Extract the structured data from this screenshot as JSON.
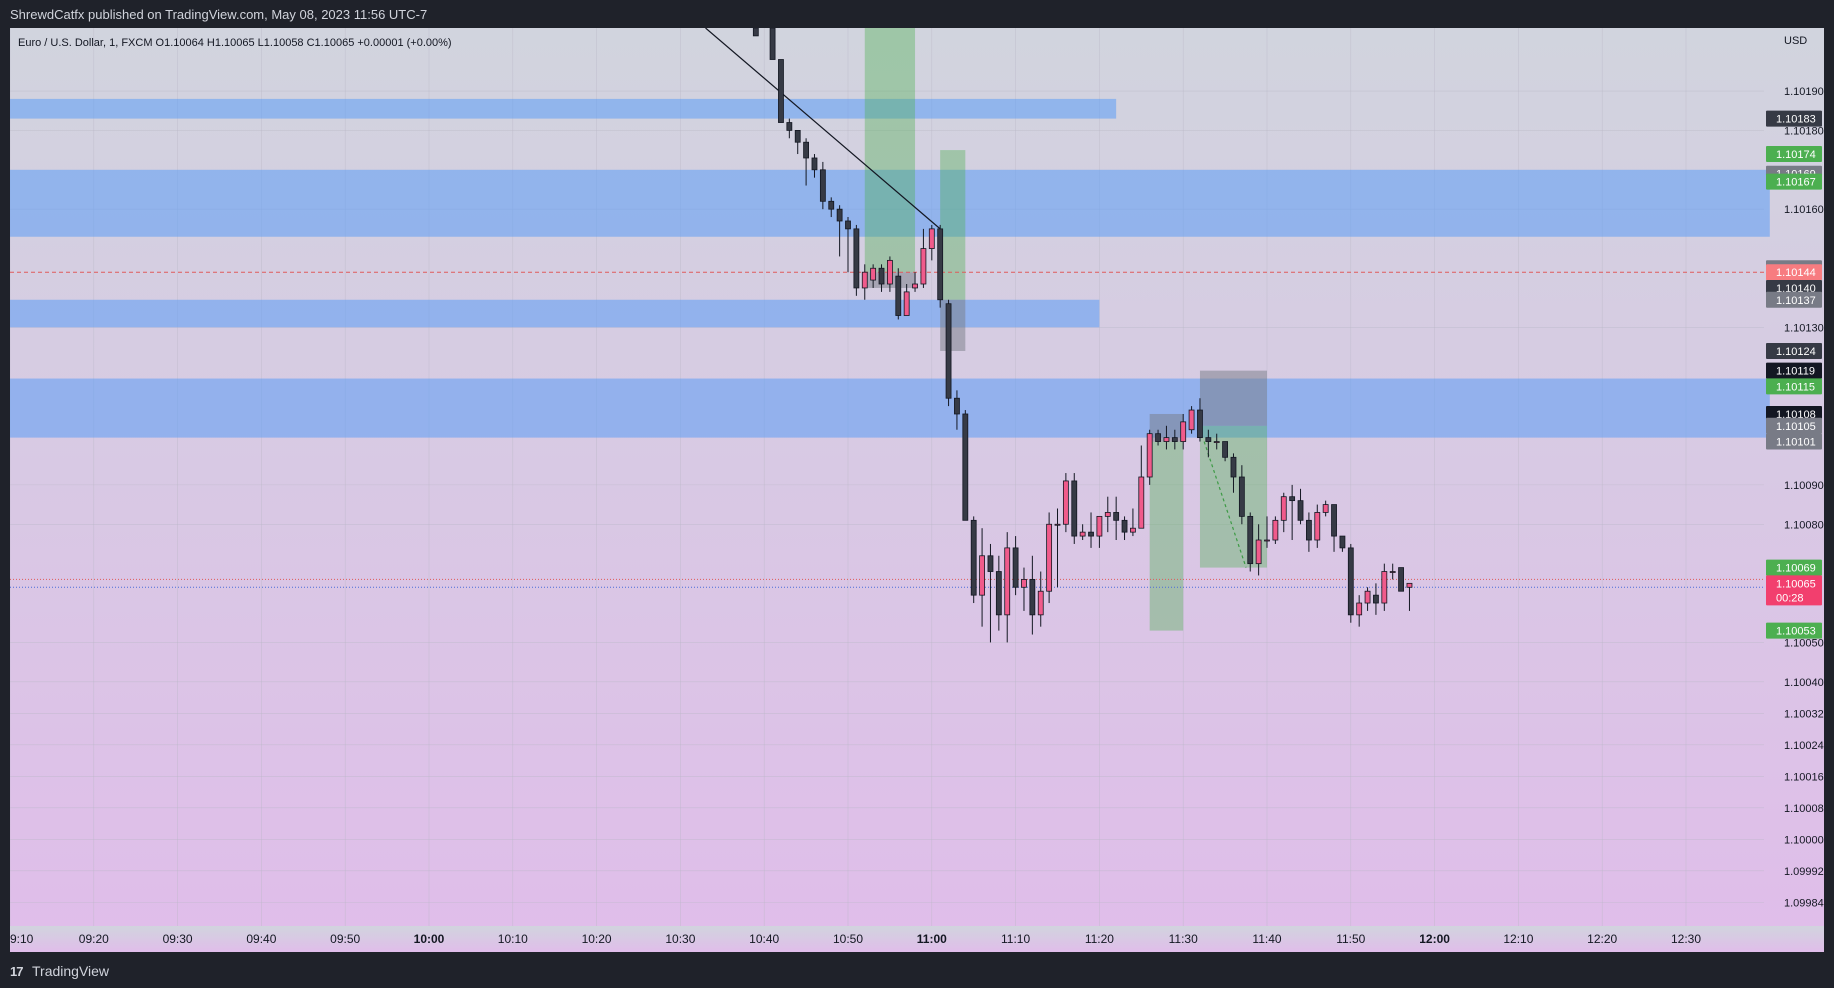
{
  "header": {
    "publish_line": "ShrewdCatfx published on TradingView.com, May 08, 2023 11:56 UTC-7"
  },
  "footer": {
    "logo_glyph": "17",
    "brand": "TradingView"
  },
  "chart_data": {
    "type": "candlestick",
    "symbol_line": "Euro / U.S. Dollar, 1, FXCM  O1.10064  H1.10065  L1.10058  C1.10065  +0.00001 (+0.00%)",
    "currency": "USD",
    "ylim": [
      1.09978,
      1.10206
    ],
    "x_ticks": [
      {
        "label": "9:10",
        "min": 0,
        "bold": false
      },
      {
        "label": "09:20",
        "min": 10,
        "bold": false
      },
      {
        "label": "09:30",
        "min": 20,
        "bold": false
      },
      {
        "label": "09:40",
        "min": 30,
        "bold": false
      },
      {
        "label": "09:50",
        "min": 40,
        "bold": false
      },
      {
        "label": "10:00",
        "min": 50,
        "bold": true
      },
      {
        "label": "10:10",
        "min": 60,
        "bold": false
      },
      {
        "label": "10:20",
        "min": 70,
        "bold": false
      },
      {
        "label": "10:30",
        "min": 80,
        "bold": false
      },
      {
        "label": "10:40",
        "min": 90,
        "bold": false
      },
      {
        "label": "10:50",
        "min": 100,
        "bold": false
      },
      {
        "label": "11:00",
        "min": 110,
        "bold": true
      },
      {
        "label": "11:10",
        "min": 120,
        "bold": false
      },
      {
        "label": "11:20",
        "min": 130,
        "bold": false
      },
      {
        "label": "11:30",
        "min": 140,
        "bold": false
      },
      {
        "label": "11:40",
        "min": 150,
        "bold": false
      },
      {
        "label": "11:50",
        "min": 160,
        "bold": false
      },
      {
        "label": "12:00",
        "min": 170,
        "bold": true
      },
      {
        "label": "12:10",
        "min": 180,
        "bold": false
      },
      {
        "label": "12:20",
        "min": 190,
        "bold": false
      },
      {
        "label": "12:30",
        "min": 200,
        "bold": false
      }
    ],
    "y_ticks": [
      "1.10190",
      "1.10180",
      "1.10160",
      "1.10130",
      "1.10090",
      "1.10080",
      "1.10050",
      "1.10040",
      "1.10032",
      "1.10024",
      "1.10016",
      "1.10008",
      "1.10000",
      "1.09992",
      "1.09984"
    ],
    "price_tags": [
      {
        "label": "1.10183",
        "value": 1.10183,
        "color": "#363a45"
      },
      {
        "label": "1.10174",
        "value": 1.10174,
        "color": "#4caf50"
      },
      {
        "label": "1.10169",
        "value": 1.10169,
        "color": "#787b86"
      },
      {
        "label": "1.10167",
        "value": 1.10167,
        "color": "#4caf50"
      },
      {
        "label": "1.10145",
        "value": 1.10145,
        "color": "#787b86"
      },
      {
        "label": "1.10144",
        "value": 1.10144,
        "color": "#f77c80"
      },
      {
        "label": "1.10140",
        "value": 1.1014,
        "color": "#363a45"
      },
      {
        "label": "1.10137",
        "value": 1.10137,
        "color": "#787b86"
      },
      {
        "label": "1.10124",
        "value": 1.10124,
        "color": "#363a45"
      },
      {
        "label": "1.10119",
        "value": 1.10119,
        "color": "#131722"
      },
      {
        "label": "1.10115",
        "value": 1.10115,
        "color": "#4caf50"
      },
      {
        "label": "1.10108",
        "value": 1.10108,
        "color": "#131722"
      },
      {
        "label": "1.10105",
        "value": 1.10105,
        "color": "#787b86"
      },
      {
        "label": "1.10101",
        "value": 1.10101,
        "color": "#787b86"
      },
      {
        "label": "1.10069",
        "value": 1.10069,
        "color": "#4caf50"
      },
      {
        "label": "1.10053",
        "value": 1.10053,
        "color": "#4caf50"
      }
    ],
    "last_price": {
      "label": "1.10065",
      "countdown": "00:28",
      "value": 1.10065,
      "color": "#f23f6e"
    },
    "horizontal_lines": [
      {
        "value": 1.10144,
        "color": "#e05a5a",
        "style": "dashed"
      },
      {
        "value": 1.10066,
        "color": "#e05a5a",
        "style": "dotted"
      },
      {
        "value": 1.10064,
        "color": "#4a6bd8",
        "style": "dotted"
      }
    ],
    "zones": [
      {
        "type": "supply",
        "t_start": 0,
        "t_end": 132,
        "y_top": 1.10188,
        "y_bot": 1.10183
      },
      {
        "type": "supply",
        "t_start": 0,
        "t_end": 210,
        "y_top": 1.1017,
        "y_bot": 1.10153
      },
      {
        "type": "supply",
        "t_start": 0,
        "t_end": 130,
        "y_top": 1.10137,
        "y_bot": 1.1013
      },
      {
        "type": "supply",
        "t_start": 0,
        "t_end": 210,
        "y_top": 1.10117,
        "y_bot": 1.10102
      }
    ],
    "positions": [
      {
        "t_start": 102,
        "t_end": 108,
        "entry": 1.10144,
        "target": 1.10206,
        "stop": 1.1014
      },
      {
        "t_start": 111,
        "t_end": 114,
        "entry": 1.10137,
        "target": 1.10175,
        "stop": 1.10124
      },
      {
        "t_start": 136,
        "t_end": 140,
        "entry": 1.10101,
        "target": 1.10053,
        "stop": 1.10108
      },
      {
        "t_start": 142,
        "t_end": 150,
        "entry": 1.10105,
        "target": 1.10069,
        "stop": 1.10119
      }
    ],
    "trendlines": [
      {
        "t1": 83,
        "p1": 1.10206,
        "t2": 111,
        "p2": 1.10155,
        "style": "solid"
      },
      {
        "t1": 142.5,
        "p1": 1.10101,
        "t2": 147.5,
        "p2": 1.10069,
        "style": "dashed"
      }
    ],
    "candles": [
      [
        89,
        1.10206,
        1.10206,
        1.10204,
        1.10204
      ],
      [
        91,
        1.10206,
        1.10206,
        1.10198,
        1.10198
      ],
      [
        92,
        1.10198,
        1.10198,
        1.10182,
        1.10182
      ],
      [
        93,
        1.10182,
        1.10183,
        1.10178,
        1.1018
      ],
      [
        94,
        1.1018,
        1.1018,
        1.10174,
        1.10177
      ],
      [
        95,
        1.10177,
        1.10178,
        1.10166,
        1.10173
      ],
      [
        96,
        1.10173,
        1.10174,
        1.10168,
        1.1017
      ],
      [
        97,
        1.1017,
        1.10172,
        1.1016,
        1.10162
      ],
      [
        98,
        1.10162,
        1.10163,
        1.10158,
        1.1016
      ],
      [
        99,
        1.1016,
        1.10161,
        1.10148,
        1.10157
      ],
      [
        100,
        1.10157,
        1.10158,
        1.10144,
        1.10155
      ],
      [
        101,
        1.10155,
        1.10156,
        1.10138,
        1.1014
      ],
      [
        102,
        1.1014,
        1.10146,
        1.10137,
        1.10144
      ],
      [
        103,
        1.10142,
        1.10146,
        1.1014,
        1.10145
      ],
      [
        104,
        1.10145,
        1.10146,
        1.10139,
        1.10141
      ],
      [
        105,
        1.10141,
        1.10148,
        1.10139,
        1.10147
      ],
      [
        106,
        1.10143,
        1.10145,
        1.10132,
        1.10133
      ],
      [
        107,
        1.10133,
        1.10141,
        1.10133,
        1.10139
      ],
      [
        108,
        1.1014,
        1.10144,
        1.10139,
        1.10141
      ],
      [
        109,
        1.10141,
        1.10155,
        1.1014,
        1.1015
      ],
      [
        110,
        1.1015,
        1.10156,
        1.10147,
        1.10155
      ],
      [
        111,
        1.10155,
        1.10156,
        1.10135,
        1.10137
      ],
      [
        112,
        1.10136,
        1.10137,
        1.1011,
        1.10112
      ],
      [
        113,
        1.10112,
        1.10114,
        1.10104,
        1.10108
      ],
      [
        114,
        1.10108,
        1.10109,
        1.10081,
        1.10081
      ],
      [
        115,
        1.10081,
        1.10082,
        1.1006,
        1.10062
      ],
      [
        116,
        1.10062,
        1.10079,
        1.10054,
        1.10072
      ],
      [
        117,
        1.10072,
        1.10075,
        1.1005,
        1.10068
      ],
      [
        118,
        1.10068,
        1.10072,
        1.10053,
        1.10057
      ],
      [
        119,
        1.10057,
        1.10078,
        1.1005,
        1.10074
      ],
      [
        120,
        1.10074,
        1.10077,
        1.10062,
        1.10064
      ],
      [
        121,
        1.10064,
        1.10069,
        1.10058,
        1.10066
      ],
      [
        122,
        1.10066,
        1.10072,
        1.10052,
        1.10057
      ],
      [
        123,
        1.10057,
        1.10068,
        1.10054,
        1.10063
      ],
      [
        124,
        1.10063,
        1.10083,
        1.1006,
        1.1008
      ],
      [
        125,
        1.1008,
        1.10084,
        1.10064,
        1.1008
      ],
      [
        126,
        1.1008,
        1.10093,
        1.10078,
        1.10091
      ],
      [
        127,
        1.10091,
        1.10093,
        1.10075,
        1.10077
      ],
      [
        128,
        1.10077,
        1.1008,
        1.10076,
        1.10078
      ],
      [
        129,
        1.10078,
        1.10083,
        1.10074,
        1.10077
      ],
      [
        130,
        1.10077,
        1.10082,
        1.10074,
        1.10082
      ],
      [
        131,
        1.10082,
        1.10087,
        1.10078,
        1.10083
      ],
      [
        132,
        1.10083,
        1.10087,
        1.10076,
        1.10081
      ],
      [
        133,
        1.10081,
        1.10082,
        1.10076,
        1.10078
      ],
      [
        134,
        1.10078,
        1.10084,
        1.10077,
        1.10079
      ],
      [
        135,
        1.10079,
        1.101,
        1.10079,
        1.10092
      ],
      [
        136,
        1.10092,
        1.10104,
        1.1009,
        1.10103
      ],
      [
        137,
        1.10103,
        1.10104,
        1.101,
        1.10101
      ],
      [
        138,
        1.10101,
        1.10105,
        1.10099,
        1.10102
      ],
      [
        139,
        1.10102,
        1.10104,
        1.10099,
        1.10101
      ],
      [
        140,
        1.10101,
        1.10108,
        1.10099,
        1.10106
      ],
      [
        141,
        1.10104,
        1.1011,
        1.10103,
        1.10109
      ],
      [
        142,
        1.10109,
        1.10112,
        1.10101,
        1.10102
      ],
      [
        143,
        1.10102,
        1.10104,
        1.10097,
        1.10101
      ],
      [
        144,
        1.10101,
        1.10103,
        1.10099,
        1.10101
      ],
      [
        145,
        1.10101,
        1.10101,
        1.10096,
        1.10097
      ],
      [
        146,
        1.10097,
        1.10098,
        1.10088,
        1.10092
      ],
      [
        147,
        1.10092,
        1.10095,
        1.1008,
        1.10082
      ],
      [
        148,
        1.10082,
        1.10083,
        1.10068,
        1.1007
      ],
      [
        149,
        1.1007,
        1.1008,
        1.10067,
        1.10076
      ],
      [
        150,
        1.10076,
        1.10082,
        1.10074,
        1.10076
      ],
      [
        151,
        1.10076,
        1.10082,
        1.10075,
        1.10081
      ],
      [
        152,
        1.10081,
        1.10088,
        1.10078,
        1.10087
      ],
      [
        153,
        1.10087,
        1.1009,
        1.10076,
        1.10086
      ],
      [
        154,
        1.10086,
        1.10089,
        1.1008,
        1.10081
      ],
      [
        155,
        1.10081,
        1.10083,
        1.10073,
        1.10076
      ],
      [
        156,
        1.10076,
        1.10085,
        1.10074,
        1.10083
      ],
      [
        157,
        1.10083,
        1.10086,
        1.10082,
        1.10085
      ],
      [
        158,
        1.10085,
        1.10085,
        1.10073,
        1.10077
      ],
      [
        159,
        1.10077,
        1.10077,
        1.10073,
        1.10074
      ],
      [
        160,
        1.10074,
        1.10075,
        1.10055,
        1.10057
      ],
      [
        161,
        1.10057,
        1.10062,
        1.10054,
        1.1006
      ],
      [
        162,
        1.1006,
        1.10064,
        1.10058,
        1.10063
      ],
      [
        163,
        1.10062,
        1.10065,
        1.10057,
        1.1006
      ],
      [
        164,
        1.1006,
        1.1007,
        1.10058,
        1.10068
      ],
      [
        165,
        1.10068,
        1.1007,
        1.10066,
        1.10068
      ],
      [
        166,
        1.10069,
        1.10069,
        1.10063,
        1.10063
      ],
      [
        167,
        1.10064,
        1.10065,
        1.10058,
        1.10065
      ]
    ]
  }
}
